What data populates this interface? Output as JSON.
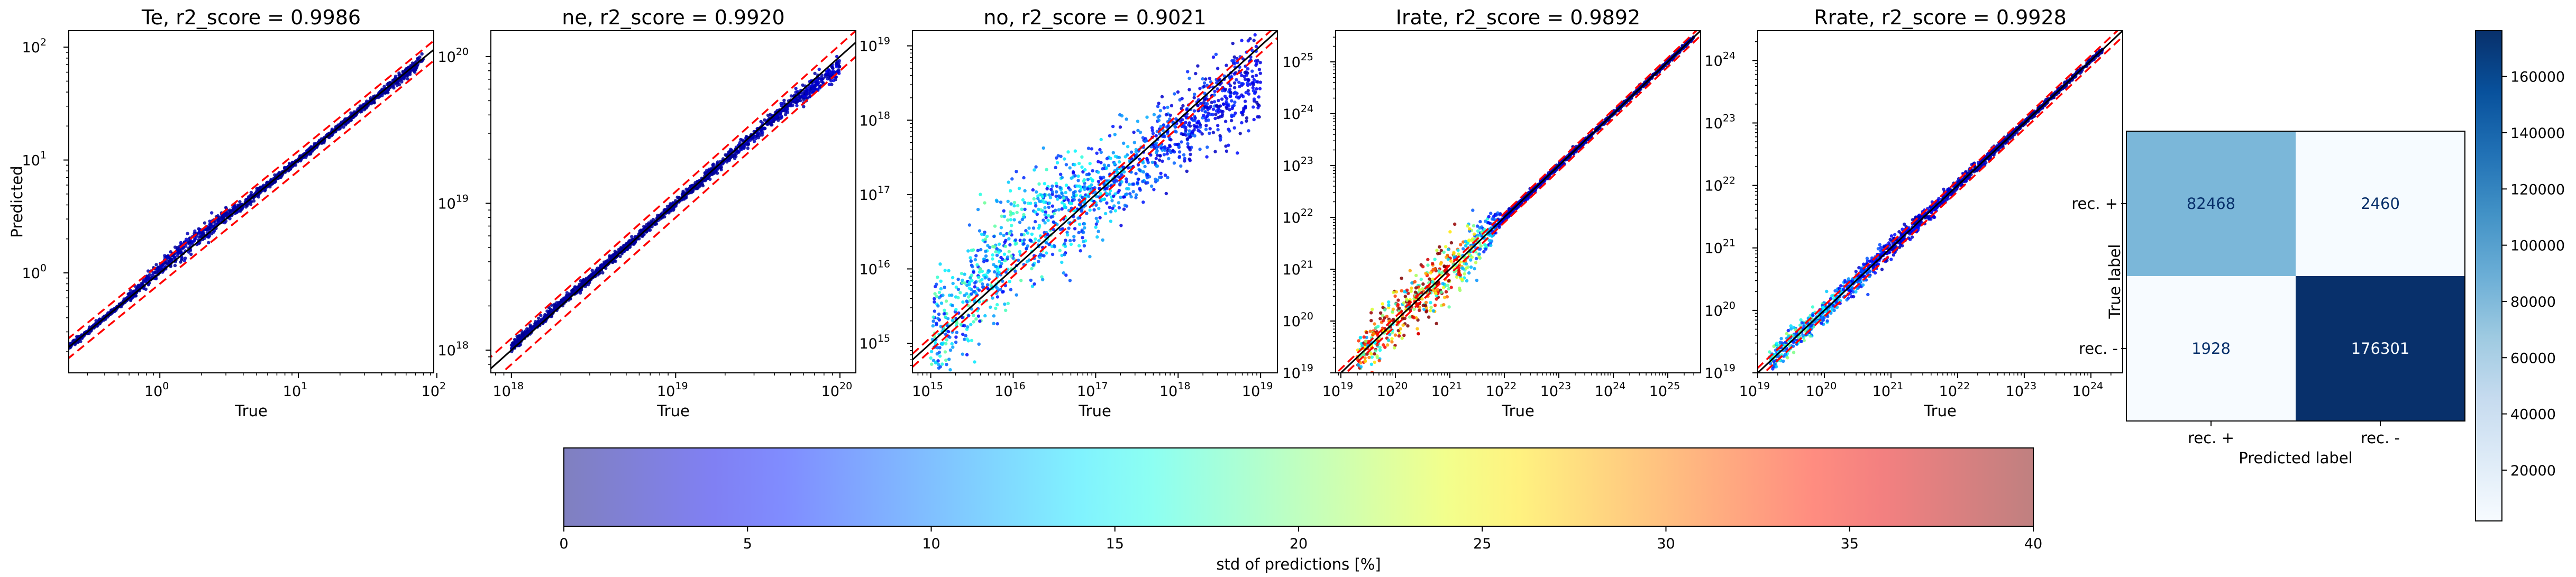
{
  "chart_data": [
    {
      "type": "scatter",
      "title": "Te, r2_score = 0.9986",
      "xlabel": "True",
      "ylabel": "Predicted",
      "xscale": "log",
      "yscale": "log",
      "xlim": [
        0.22,
        95
      ],
      "ylim": [
        0.13,
        140
      ],
      "xticks": [
        {
          "v": 1,
          "e": "0"
        },
        {
          "v": 10,
          "e": "1"
        },
        {
          "v": 100,
          "e": "2"
        }
      ],
      "yticks": [
        {
          "v": 1,
          "e": "0"
        },
        {
          "v": 10,
          "e": "1"
        },
        {
          "v": 100,
          "e": "2"
        }
      ],
      "reference_lines": [
        {
          "name": "identity",
          "style": "solid",
          "color": "#000000",
          "factor": 1.0
        },
        {
          "name": "upper bound",
          "style": "dashed",
          "color": "#ff0000",
          "factor": 1.2
        },
        {
          "name": "lower bound",
          "style": "dashed",
          "color": "#ff0000",
          "factor": 0.8
        }
      ],
      "point_cloud": [
        {
          "x": 0.22,
          "y_center": 0.22,
          "y_spread_pct": 5,
          "std_pct": 1
        },
        {
          "x": 0.5,
          "y_center": 0.5,
          "y_spread_pct": 5,
          "std_pct": 1
        },
        {
          "x": 1.5,
          "y_center": 1.7,
          "y_spread_pct": 25,
          "std_pct": 2
        },
        {
          "x": 5,
          "y_center": 5,
          "y_spread_pct": 8,
          "std_pct": 1
        },
        {
          "x": 20,
          "y_center": 20,
          "y_spread_pct": 6,
          "std_pct": 1
        },
        {
          "x": 80,
          "y_center": 78,
          "y_spread_pct": 12,
          "std_pct": 1
        }
      ]
    },
    {
      "type": "scatter",
      "title": "ne, r2_score = 0.9920",
      "xlabel": "True",
      "ylabel": "",
      "xscale": "log",
      "yscale": "log",
      "xlim": [
        7.5e+17,
        1.25e+20
      ],
      "ylim": [
        7e+17,
        1.5e+20
      ],
      "xticks": [
        {
          "v": 1e+18,
          "e": "18"
        },
        {
          "v": 1e+19,
          "e": "19"
        },
        {
          "v": 1e+20,
          "e": "20"
        }
      ],
      "yticks": [
        {
          "v": 1e+18,
          "e": "18"
        },
        {
          "v": 1e+19,
          "e": "19"
        },
        {
          "v": 1e+20,
          "e": "20"
        }
      ],
      "reference_lines": [
        {
          "name": "identity",
          "style": "solid",
          "color": "#000000",
          "factor": 1.0
        },
        {
          "name": "upper bound",
          "style": "dashed",
          "color": "#ff0000",
          "factor": 1.2
        },
        {
          "name": "lower bound",
          "style": "dashed",
          "color": "#ff0000",
          "factor": 0.8
        }
      ],
      "point_cloud": [
        {
          "x": 1e+18,
          "y_center": 1.05e+18,
          "y_spread_pct": 8,
          "std_pct": 1
        },
        {
          "x": 1e+19,
          "y_center": 1e+19,
          "y_spread_pct": 6,
          "std_pct": 1
        },
        {
          "x": 5e+19,
          "y_center": 4.8e+19,
          "y_spread_pct": 12,
          "std_pct": 2
        },
        {
          "x": 1e+20,
          "y_center": 8.5e+19,
          "y_spread_pct": 20,
          "std_pct": 3
        }
      ]
    },
    {
      "type": "scatter",
      "title": "no, r2_score = 0.9021",
      "xlabel": "True",
      "ylabel": "",
      "xscale": "log",
      "yscale": "log",
      "xlim": [
        600000000000000.0,
        1.6e+19
      ],
      "ylim": [
        400000000000000.0,
        1.6e+19
      ],
      "xticks": [
        {
          "v": 1000000000000000.0,
          "e": "15"
        },
        {
          "v": 1e+16,
          "e": "16"
        },
        {
          "v": 1e+17,
          "e": "17"
        },
        {
          "v": 1e+18,
          "e": "18"
        },
        {
          "v": 1e+19,
          "e": "19"
        }
      ],
      "yticks": [
        {
          "v": 1000000000000000.0,
          "e": "15"
        },
        {
          "v": 1e+16,
          "e": "16"
        },
        {
          "v": 1e+17,
          "e": "17"
        },
        {
          "v": 1e+18,
          "e": "18"
        },
        {
          "v": 1e+19,
          "e": "19"
        }
      ],
      "reference_lines": [
        {
          "name": "identity",
          "style": "solid",
          "color": "#000000",
          "factor": 1.0
        },
        {
          "name": "upper bound",
          "style": "dashed",
          "color": "#ff0000",
          "factor": 1.2
        },
        {
          "name": "lower bound",
          "style": "dashed",
          "color": "#ff0000",
          "factor": 0.8
        }
      ],
      "point_cloud": [
        {
          "x": 1000000000000000.0,
          "y_center": 1000000000000000.0,
          "y_spread_pct": 400,
          "std_pct": 12
        },
        {
          "x": 1e+16,
          "y_center": 3e+16,
          "y_spread_pct": 600,
          "std_pct": 12
        },
        {
          "x": 1e+17,
          "y_center": 1e+17,
          "y_spread_pct": 250,
          "std_pct": 10
        },
        {
          "x": 1e+18,
          "y_center": 7e+17,
          "y_spread_pct": 200,
          "std_pct": 6
        },
        {
          "x": 1e+19,
          "y_center": 4e+18,
          "y_spread_pct": 300,
          "std_pct": 4
        }
      ]
    },
    {
      "type": "scatter",
      "title": "Irate, r2_score = 0.9892",
      "xlabel": "True",
      "ylabel": "",
      "xscale": "log",
      "yscale": "log",
      "xlim": [
        8e+18,
        4e+25
      ],
      "ylim": [
        1e+19,
        4e+25
      ],
      "xticks": [
        {
          "v": 1e+19,
          "e": "19"
        },
        {
          "v": 1e+20,
          "e": "20"
        },
        {
          "v": 1e+21,
          "e": "21"
        },
        {
          "v": 1e+22,
          "e": "22"
        },
        {
          "v": 1e+23,
          "e": "23"
        },
        {
          "v": 1e+24,
          "e": "24"
        },
        {
          "v": 1e+25,
          "e": "25"
        }
      ],
      "yticks": [
        {
          "v": 1e+19,
          "e": "19"
        },
        {
          "v": 1e+20,
          "e": "20"
        },
        {
          "v": 1e+21,
          "e": "21"
        },
        {
          "v": 1e+22,
          "e": "22"
        },
        {
          "v": 1e+23,
          "e": "23"
        },
        {
          "v": 1e+24,
          "e": "24"
        },
        {
          "v": 1e+25,
          "e": "25"
        }
      ],
      "reference_lines": [
        {
          "name": "identity",
          "style": "solid",
          "color": "#000000",
          "factor": 1.0
        },
        {
          "name": "upper bound",
          "style": "dashed",
          "color": "#ff0000",
          "factor": 1.2
        },
        {
          "name": "lower bound",
          "style": "dashed",
          "color": "#ff0000",
          "factor": 0.8
        }
      ],
      "point_cloud": [
        {
          "x": 2e+19,
          "y_center": 2e+19,
          "y_spread_pct": 150,
          "std_pct": 25
        },
        {
          "x": 1e+20,
          "y_center": 1.2e+20,
          "y_spread_pct": 250,
          "std_pct": 30
        },
        {
          "x": 1e+21,
          "y_center": 1e+21,
          "y_spread_pct": 300,
          "std_pct": 28
        },
        {
          "x": 1e+22,
          "y_center": 1e+22,
          "y_spread_pct": 20,
          "std_pct": 3
        },
        {
          "x": 1e+24,
          "y_center": 1e+24,
          "y_spread_pct": 10,
          "std_pct": 1
        },
        {
          "x": 3e+25,
          "y_center": 3e+25,
          "y_spread_pct": 8,
          "std_pct": 1
        }
      ]
    },
    {
      "type": "scatter",
      "title": "Rrate, r2_score = 0.9928",
      "xlabel": "True",
      "ylabel": "",
      "xscale": "log",
      "yscale": "log",
      "xlim": [
        1e+19,
        3e+24
      ],
      "ylim": [
        1e+19,
        3e+24
      ],
      "xticks": [
        {
          "v": 1e+19,
          "e": "19"
        },
        {
          "v": 1e+20,
          "e": "20"
        },
        {
          "v": 1e+21,
          "e": "21"
        },
        {
          "v": 1e+22,
          "e": "22"
        },
        {
          "v": 1e+23,
          "e": "23"
        },
        {
          "v": 1e+24,
          "e": "24"
        }
      ],
      "yticks": [
        {
          "v": 1e+19,
          "e": "19"
        },
        {
          "v": 1e+20,
          "e": "20"
        },
        {
          "v": 1e+21,
          "e": "21"
        },
        {
          "v": 1e+22,
          "e": "22"
        },
        {
          "v": 1e+23,
          "e": "23"
        },
        {
          "v": 1e+24,
          "e": "24"
        }
      ],
      "reference_lines": [
        {
          "name": "identity",
          "style": "solid",
          "color": "#000000",
          "factor": 1.0
        },
        {
          "name": "upper bound",
          "style": "dashed",
          "color": "#ff0000",
          "factor": 1.2
        },
        {
          "name": "lower bound",
          "style": "dashed",
          "color": "#ff0000",
          "factor": 0.8
        }
      ],
      "point_cloud": [
        {
          "x": 1.5e+19,
          "y_center": 1.5e+19,
          "y_spread_pct": 60,
          "std_pct": 14
        },
        {
          "x": 1e+20,
          "y_center": 1e+20,
          "y_spread_pct": 60,
          "std_pct": 12
        },
        {
          "x": 1e+21,
          "y_center": 1e+21,
          "y_spread_pct": 40,
          "std_pct": 4
        },
        {
          "x": 1e+23,
          "y_center": 1e+23,
          "y_spread_pct": 10,
          "std_pct": 1
        },
        {
          "x": 1.5e+24,
          "y_center": 1.5e+24,
          "y_spread_pct": 8,
          "std_pct": 1
        }
      ]
    },
    {
      "type": "heatmap",
      "subtype": "confusion_matrix",
      "xlabel": "Predicted label",
      "ylabel": "True label",
      "x_categories": [
        "rec. +",
        "rec. -"
      ],
      "y_categories": [
        "rec. +",
        "rec. -"
      ],
      "values": [
        [
          82468,
          2460
        ],
        [
          1928,
          176301
        ]
      ],
      "colormap": "Blues",
      "colorbar": {
        "range": [
          1928,
          176301
        ],
        "ticks": [
          20000,
          40000,
          60000,
          80000,
          100000,
          120000,
          140000,
          160000
        ],
        "placement": "right"
      }
    }
  ],
  "colorbar": {
    "label": "std of predictions [%]",
    "range": [
      0,
      40
    ],
    "ticks": [
      0,
      5,
      10,
      15,
      20,
      25,
      30,
      35,
      40
    ],
    "colormap": "jet",
    "alpha": 0.5,
    "placement": "bottom"
  }
}
